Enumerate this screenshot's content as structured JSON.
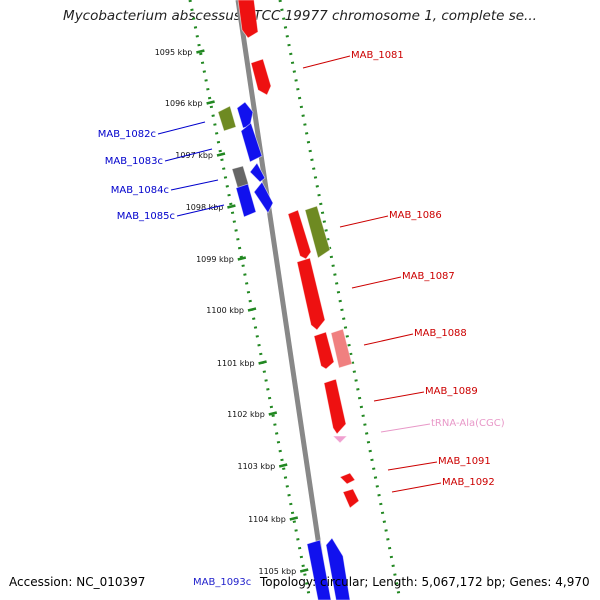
{
  "title": "Mycobacterium abscessus ATCC 19977 chromosome 1, complete se...",
  "footer": {
    "accession": "Accession: NC_010397",
    "info": "Topology: circular; Length: 5,067,172 bp; Genes: 4,970",
    "partial_label": "MAB_1093c"
  },
  "colors": {
    "forward_gene": "#ee1111",
    "reverse_gene": "#1111ee",
    "olive_gene": "#6e8a22",
    "gray_gene": "#666666",
    "pink_gene": "#f08080",
    "trna": "#f0a0d0",
    "forward_label": "#cc0000",
    "reverse_label": "#0000cc",
    "trna_label": "#e898c8",
    "backbone": "#888888",
    "ticks": "#228822"
  },
  "ticks": [
    "1095 kbp",
    "1096 kbp",
    "1097 kbp",
    "1098 kbp",
    "1099 kbp",
    "1100 kbp",
    "1101 kbp",
    "1102 kbp",
    "1103 kbp",
    "1104 kbp",
    "1105 kbp"
  ],
  "labels_right": [
    {
      "text": "MAB_1081",
      "type": "forward"
    },
    {
      "text": "MAB_1086",
      "type": "forward"
    },
    {
      "text": "MAB_1087",
      "type": "forward"
    },
    {
      "text": "MAB_1088",
      "type": "forward"
    },
    {
      "text": "MAB_1089",
      "type": "forward"
    },
    {
      "text": "tRNA-Ala(CGC)",
      "type": "trna"
    },
    {
      "text": "MAB_1091",
      "type": "forward"
    },
    {
      "text": "MAB_1092",
      "type": "forward"
    }
  ],
  "labels_left": [
    {
      "text": "MAB_1082c",
      "type": "reverse"
    },
    {
      "text": "MAB_1083c",
      "type": "reverse"
    },
    {
      "text": "MAB_1084c",
      "type": "reverse"
    },
    {
      "text": "MAB_1085c",
      "type": "reverse"
    }
  ]
}
